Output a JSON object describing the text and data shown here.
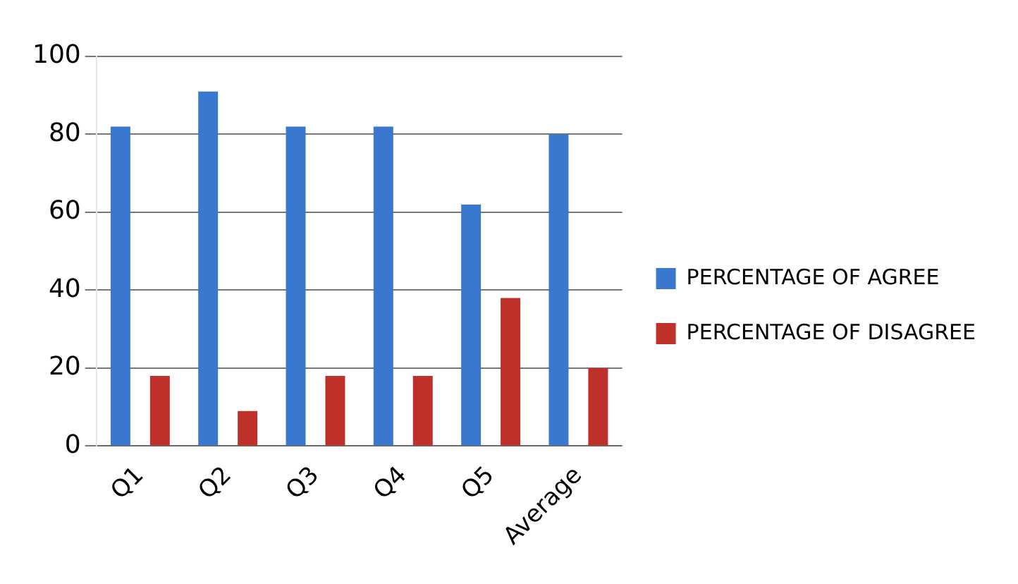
{
  "chart_data": {
    "type": "bar",
    "categories": [
      "Q1",
      "Q2",
      "Q3",
      "Q4",
      "Q5",
      "Average"
    ],
    "series": [
      {
        "name": "PERCENTAGE OF AGREE",
        "color": "#3a78d0",
        "values": [
          82,
          91,
          82,
          82,
          62,
          80
        ]
      },
      {
        "name": "PERCENTAGE OF DISAGREE",
        "color": "#c0302a",
        "values": [
          18,
          9,
          18,
          18,
          38,
          20
        ]
      }
    ],
    "ylim": [
      0,
      100
    ],
    "yticks": [
      0,
      20,
      40,
      60,
      80,
      100
    ],
    "grid": "y",
    "legend": "right"
  }
}
